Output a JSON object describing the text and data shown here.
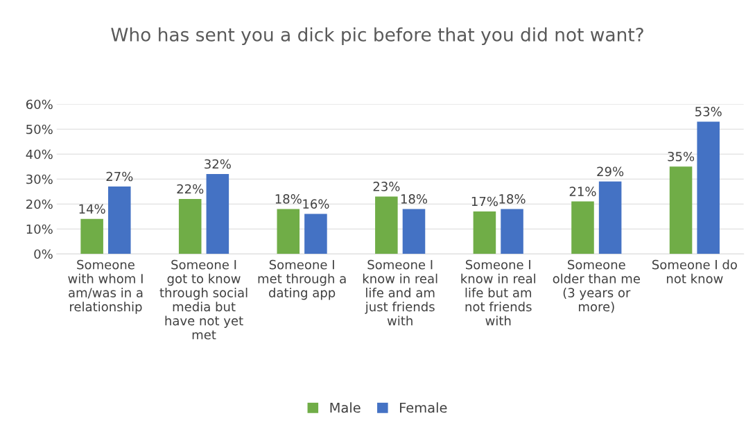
{
  "chart_data": {
    "type": "bar",
    "title": "Who has sent you a dick pic before that you did not want?",
    "categories": [
      "Someone\nwith whom I\nam/was in a\nrelationship",
      "Someone I\ngot to know\nthrough social\nmedia but\nhave not yet\nmet",
      "Someone I\nmet through a\ndating app",
      "Someone I\nknow in real\nlife and am\njust friends\nwith",
      "Someone I\nknow in real\nlife but am\nnot friends\nwith",
      "Someone\nolder than me\n(3 years or\nmore)",
      "Someone I do\nnot know"
    ],
    "series": [
      {
        "name": "Male",
        "color": "#70ad47",
        "values": [
          14,
          22,
          18,
          23,
          17,
          21,
          35
        ],
        "value_labels": [
          "14%",
          "22%",
          "18%",
          "23%",
          "17%",
          "21%",
          "35%"
        ]
      },
      {
        "name": "Female",
        "color": "#4472c4",
        "values": [
          27,
          32,
          16,
          18,
          18,
          29,
          53
        ],
        "value_labels": [
          "27%",
          "32%",
          "16%",
          "18%",
          "18%",
          "29%",
          "53%"
        ]
      }
    ],
    "ylim": [
      0,
      60
    ],
    "yticks": [
      {
        "value": 0,
        "label": "0%"
      },
      {
        "value": 10,
        "label": "10%"
      },
      {
        "value": 20,
        "label": "20%"
      },
      {
        "value": 30,
        "label": "30%"
      },
      {
        "value": 40,
        "label": "40%"
      },
      {
        "value": 50,
        "label": "50%"
      },
      {
        "value": 60,
        "label": "60%"
      }
    ],
    "grid": "y",
    "legend": "bottom"
  }
}
